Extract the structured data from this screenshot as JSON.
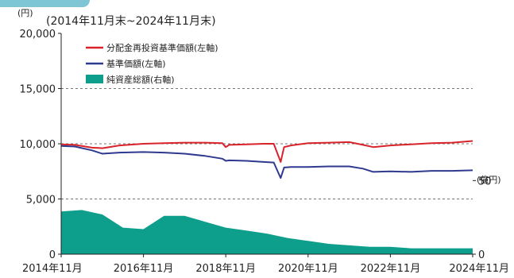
{
  "units": {
    "left": "(円)",
    "right": "(億円)"
  },
  "period": "(2014年11月末~2024年11月末)",
  "colors": {
    "reinvested": "#d8232a",
    "nav": "#2f3a8f",
    "assets": "#0e9e8c",
    "grid": "#777777",
    "tab": "#7ec6d6"
  },
  "chart_data": {
    "type": "line",
    "y_left": {
      "range": [
        0,
        20000
      ],
      "ticks": [
        0,
        5000,
        10000,
        15000,
        20000
      ],
      "tick_labels": [
        "0",
        "5,000",
        "10,000",
        "15,000",
        "20,000"
      ]
    },
    "y_right": {
      "range": [
        0,
        150
      ],
      "ticks": [
        0,
        50
      ],
      "tick_labels": [
        "0",
        "50"
      ]
    },
    "x": {
      "range": [
        "2014-11",
        "2024-11"
      ],
      "tick_labels": [
        "2014年11月",
        "2016年11月",
        "2018年11月",
        "2020年11月",
        "2022年11月",
        "2024年11月"
      ]
    },
    "grid": {
      "dashed_y": [
        5000,
        10000,
        15000
      ]
    },
    "legend": {
      "placement": "top-left"
    },
    "series": [
      {
        "name": "分配金再投資基準価額(左軸)",
        "kind": "line",
        "axis": "left",
        "color": "#d8232a",
        "points": [
          [
            "2014-11",
            9950
          ],
          [
            "2015-03",
            9900
          ],
          [
            "2015-08",
            9650
          ],
          [
            "2015-11",
            9600
          ],
          [
            "2016-04",
            9850
          ],
          [
            "2016-11",
            10000
          ],
          [
            "2017-05",
            10050
          ],
          [
            "2017-11",
            10100
          ],
          [
            "2018-05",
            10100
          ],
          [
            "2018-10",
            10050
          ],
          [
            "2018-11",
            9700
          ],
          [
            "2018-12",
            9900
          ],
          [
            "2019-05",
            9950
          ],
          [
            "2019-10",
            10000
          ],
          [
            "2020-01",
            10000
          ],
          [
            "2020-03",
            8350
          ],
          [
            "2020-04",
            9700
          ],
          [
            "2020-06",
            9850
          ],
          [
            "2020-11",
            10050
          ],
          [
            "2021-05",
            10100
          ],
          [
            "2021-11",
            10150
          ],
          [
            "2022-03",
            9900
          ],
          [
            "2022-06",
            9700
          ],
          [
            "2022-11",
            9850
          ],
          [
            "2023-05",
            9950
          ],
          [
            "2023-11",
            10050
          ],
          [
            "2024-05",
            10100
          ],
          [
            "2024-11",
            10250
          ]
        ]
      },
      {
        "name": "基準価額(左軸)",
        "kind": "line",
        "axis": "left",
        "color": "#2f3a8f",
        "points": [
          [
            "2014-11",
            9800
          ],
          [
            "2015-03",
            9750
          ],
          [
            "2015-08",
            9400
          ],
          [
            "2015-11",
            9100
          ],
          [
            "2016-04",
            9200
          ],
          [
            "2016-11",
            9250
          ],
          [
            "2017-05",
            9200
          ],
          [
            "2017-11",
            9100
          ],
          [
            "2018-05",
            8900
          ],
          [
            "2018-10",
            8650
          ],
          [
            "2018-11",
            8450
          ],
          [
            "2018-12",
            8500
          ],
          [
            "2019-05",
            8450
          ],
          [
            "2019-10",
            8350
          ],
          [
            "2020-01",
            8300
          ],
          [
            "2020-03",
            6900
          ],
          [
            "2020-04",
            7850
          ],
          [
            "2020-06",
            7900
          ],
          [
            "2020-11",
            7900
          ],
          [
            "2021-05",
            7950
          ],
          [
            "2021-11",
            7950
          ],
          [
            "2022-03",
            7750
          ],
          [
            "2022-06",
            7450
          ],
          [
            "2022-11",
            7500
          ],
          [
            "2023-05",
            7450
          ],
          [
            "2023-11",
            7550
          ],
          [
            "2024-05",
            7550
          ],
          [
            "2024-11",
            7600
          ]
        ]
      },
      {
        "name": "純資産総額(右軸)",
        "kind": "area",
        "axis": "right",
        "color": "#0e9e8c",
        "points": [
          [
            "2014-11",
            29
          ],
          [
            "2015-05",
            30
          ],
          [
            "2015-11",
            27
          ],
          [
            "2016-05",
            18
          ],
          [
            "2016-11",
            17
          ],
          [
            "2017-05",
            26
          ],
          [
            "2017-11",
            26
          ],
          [
            "2018-05",
            22
          ],
          [
            "2018-11",
            18
          ],
          [
            "2019-05",
            16
          ],
          [
            "2019-11",
            14
          ],
          [
            "2020-05",
            11
          ],
          [
            "2020-11",
            9
          ],
          [
            "2021-05",
            7
          ],
          [
            "2021-11",
            6
          ],
          [
            "2022-05",
            5
          ],
          [
            "2022-11",
            5
          ],
          [
            "2023-05",
            4
          ],
          [
            "2023-11",
            4
          ],
          [
            "2024-05",
            4
          ],
          [
            "2024-11",
            4
          ]
        ]
      }
    ]
  }
}
